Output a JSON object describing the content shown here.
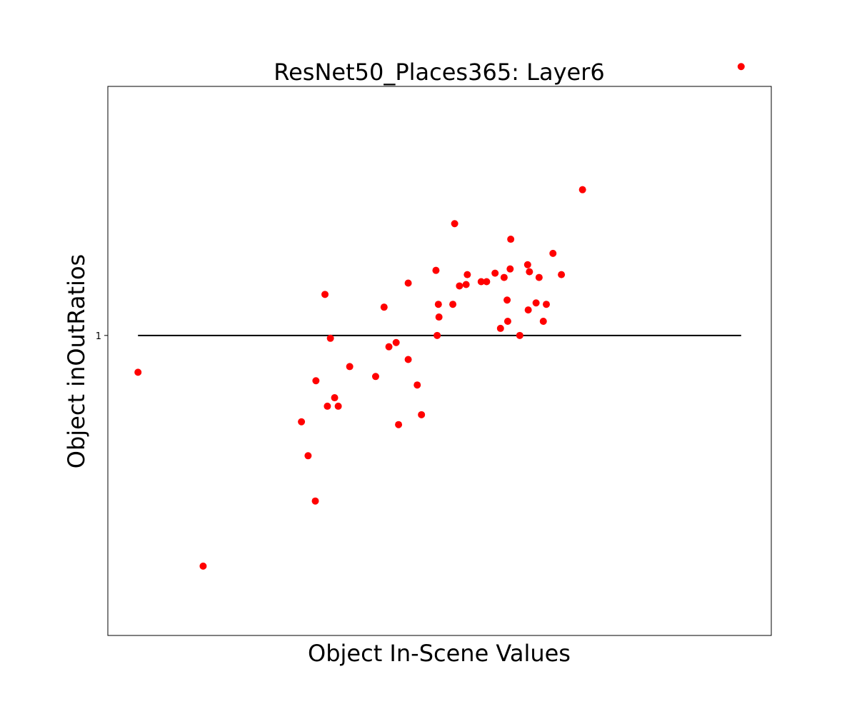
{
  "chart_data": {
    "type": "scatter",
    "title": "ResNet50_Places365: Layer6",
    "xlabel": "Object In-Scene Values",
    "ylabel": "Object inOutRatios",
    "xlim": [
      -0.05,
      1.05
    ],
    "ylim": [
      -0.212,
      0.176
    ],
    "log_y": true,
    "y_ticks": [
      {
        "value": 0,
        "label": "1"
      }
    ],
    "reference_line": {
      "y": 0,
      "x_range": [
        0,
        1
      ],
      "color": "#000000"
    },
    "marker_color": "#ff0000",
    "grid": false,
    "series": [
      {
        "points": [
          [
            0.0,
            -0.026
          ],
          [
            0.108,
            -0.163
          ],
          [
            0.271,
            -0.061
          ],
          [
            0.282,
            -0.085
          ],
          [
            0.295,
            -0.032
          ],
          [
            0.294,
            -0.117
          ],
          [
            0.31,
            0.029
          ],
          [
            0.314,
            -0.05
          ],
          [
            0.319,
            -0.002
          ],
          [
            0.326,
            -0.044
          ],
          [
            0.332,
            -0.05
          ],
          [
            0.351,
            -0.022
          ],
          [
            0.394,
            -0.029
          ],
          [
            0.408,
            0.02
          ],
          [
            0.416,
            -0.008
          ],
          [
            0.428,
            -0.005
          ],
          [
            0.432,
            -0.063
          ],
          [
            0.448,
            0.037
          ],
          [
            0.448,
            -0.017
          ],
          [
            0.463,
            -0.035
          ],
          [
            0.47,
            -0.056
          ],
          [
            0.494,
            0.046
          ],
          [
            0.496,
            0.0
          ],
          [
            0.498,
            0.022
          ],
          [
            0.499,
            0.013
          ],
          [
            0.522,
            0.022
          ],
          [
            0.525,
            0.079
          ],
          [
            0.533,
            0.035
          ],
          [
            0.592,
            0.044
          ],
          [
            0.544,
            0.036
          ],
          [
            0.546,
            0.043
          ],
          [
            0.569,
            0.038
          ],
          [
            0.578,
            0.038
          ],
          [
            0.601,
            0.005
          ],
          [
            0.607,
            0.041
          ],
          [
            0.612,
            0.025
          ],
          [
            0.613,
            0.01
          ],
          [
            0.617,
            0.047
          ],
          [
            0.618,
            0.068
          ],
          [
            0.633,
            0.0
          ],
          [
            0.646,
            0.05
          ],
          [
            0.647,
            0.018
          ],
          [
            0.649,
            0.045
          ],
          [
            0.66,
            0.023
          ],
          [
            0.665,
            0.041
          ],
          [
            0.672,
            0.01
          ],
          [
            0.677,
            0.022
          ],
          [
            0.688,
            0.058
          ],
          [
            0.702,
            0.043
          ],
          [
            0.737,
            0.103
          ],
          [
            1.0,
            0.19
          ]
        ]
      }
    ]
  }
}
